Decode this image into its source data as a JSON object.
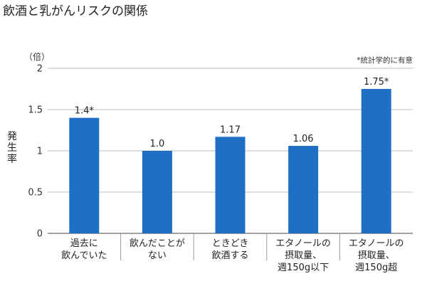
{
  "chart_data": {
    "type": "bar",
    "title": "飲酒と乳がんリスクの関係",
    "unit_label": "（倍）",
    "note": "*統計学的に有意",
    "ylabel": "発生率",
    "ylim": [
      0,
      2
    ],
    "yticks": [
      0,
      0.5,
      1,
      1.5,
      2
    ],
    "ytick_labels": [
      "0",
      "0.5",
      "1",
      "1.5",
      "2"
    ],
    "grid": true,
    "categories": [
      [
        "過去に",
        "飲んでいた"
      ],
      [
        "飲んだことが",
        "ない"
      ],
      [
        "ときどき",
        "飲酒する"
      ],
      [
        "エタノールの",
        "摂取量、",
        "週150g以下"
      ],
      [
        "エタノールの",
        "摂取量、",
        "週150g超"
      ]
    ],
    "values": [
      1.4,
      1.0,
      1.17,
      1.06,
      1.75
    ],
    "data_labels": [
      "1.4*",
      "1.0",
      "1.17",
      "1.06",
      "1.75*"
    ],
    "colors": {
      "bar": "#1f6fc5",
      "grid": "#bdbdbd",
      "text": "#222222"
    }
  }
}
